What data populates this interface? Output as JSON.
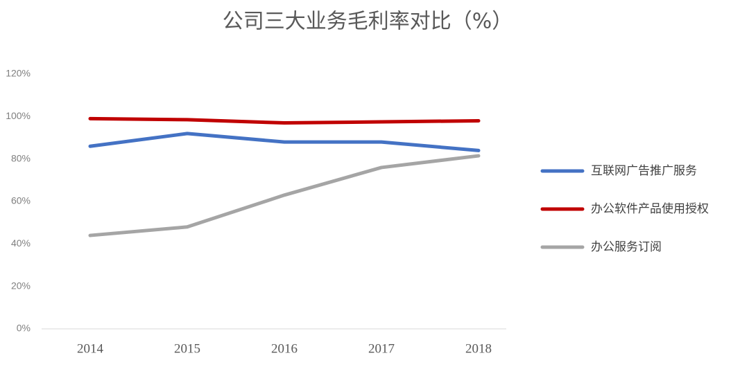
{
  "chart_data": {
    "type": "line",
    "title": "公司三大业务毛利率对比（%）",
    "categories": [
      "2014",
      "2015",
      "2016",
      "2017",
      "2018"
    ],
    "series": [
      {
        "name": "互联网广告推广服务",
        "color": "#4472c4",
        "values": [
          86,
          92,
          88,
          88,
          84
        ]
      },
      {
        "name": "办公软件产品使用授权",
        "color": "#c00000",
        "values": [
          99,
          98.5,
          97,
          97.5,
          98
        ]
      },
      {
        "name": "办公服务订阅",
        "color": "#a5a5a5",
        "values": [
          44,
          48,
          63,
          76,
          81.5
        ]
      }
    ],
    "ylim": [
      0,
      120
    ],
    "yticks": [
      {
        "value": 0,
        "label": "0%"
      },
      {
        "value": 20,
        "label": "20%"
      },
      {
        "value": 40,
        "label": "40%"
      },
      {
        "value": 60,
        "label": "60%"
      },
      {
        "value": 80,
        "label": "80%"
      },
      {
        "value": 100,
        "label": "100%"
      },
      {
        "value": 120,
        "label": "120%"
      }
    ],
    "grid": false,
    "legend": "right"
  }
}
